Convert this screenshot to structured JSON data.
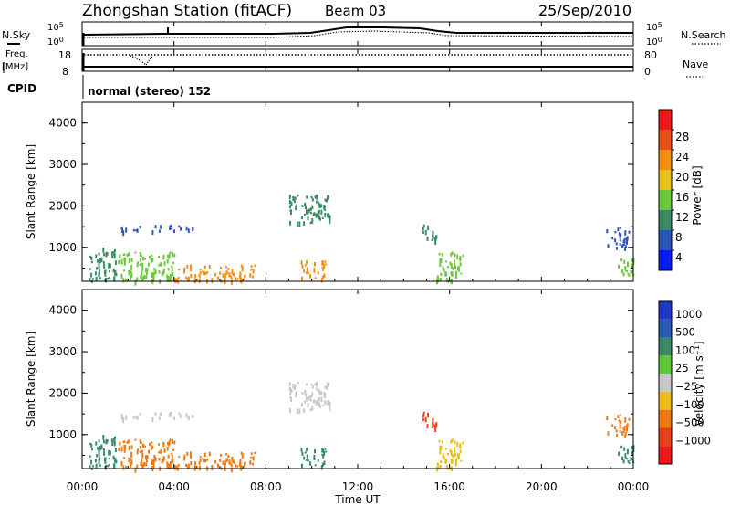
{
  "header": {
    "title": "Zhongshan Station (fitACF)",
    "beam": "Beam 03",
    "date": "25/Sep/2010"
  },
  "top_panels": {
    "nsky_label": "N.Sky",
    "nsky_ticks": [
      "10^5",
      "10^0"
    ],
    "nsearch_label": "N.Search",
    "nsearch_ticks": [
      "10^5",
      "10^0"
    ],
    "freq_label_1": "Freq.",
    "freq_label_2": "[MHz]",
    "freq_ticks": [
      "18",
      "8"
    ],
    "nave_label": "Nave",
    "nave_ticks": [
      "80",
      "0"
    ],
    "cpid_label": "CPID",
    "cpid_value": "normal (stereo) 152"
  },
  "x_axis": {
    "title": "Time UT",
    "ticks": [
      "00:00",
      "04:00",
      "08:00",
      "12:00",
      "16:00",
      "20:00",
      "00:00"
    ],
    "range_hours": [
      0,
      24
    ]
  },
  "y_axis": {
    "title": "Slant Range [km]",
    "ticks": [
      "1000",
      "2000",
      "3000",
      "4000"
    ],
    "range_km": [
      180,
      4500
    ]
  },
  "power_colorbar": {
    "title": "Power [dB]",
    "labels": [
      "4",
      "8",
      "12",
      "16",
      "20",
      "24",
      "28"
    ],
    "colors": [
      "#0a1df0",
      "#2a56b8",
      "#3a8a66",
      "#6ac83a",
      "#e8c21a",
      "#f48e12",
      "#e8501a",
      "#ee1a1a"
    ]
  },
  "velocity_colorbar": {
    "title": "Velocity [m s⁻¹]",
    "labels": [
      "1000",
      "500",
      "100",
      "25",
      "−25",
      "−100",
      "−500",
      "−1000"
    ],
    "colors": [
      "#2038c8",
      "#2a5ab4",
      "#3a8a6a",
      "#5ec83a",
      "#c8c8c4",
      "#eebc1a",
      "#f07a12",
      "#e8401a",
      "#ee1a1a"
    ]
  },
  "chart_data": [
    {
      "type": "heatmap",
      "name": "power",
      "xlabel": "Time UT",
      "ylabel": "Slant Range [km]",
      "xlim": [
        0,
        24
      ],
      "ylim": [
        180,
        4500
      ],
      "regions": [
        {
          "t": [
            0.3,
            1.5
          ],
          "r": [
            200,
            1000
          ],
          "color": "#3a8a66"
        },
        {
          "t": [
            1.5,
            4.0
          ],
          "r": [
            200,
            900
          ],
          "color": "#6ac83a"
        },
        {
          "t": [
            4.0,
            7.5
          ],
          "r": [
            200,
            600
          ],
          "color": "#f48e12"
        },
        {
          "t": [
            1.6,
            2.6
          ],
          "r": [
            1400,
            1550
          ],
          "color": "#2a56b8"
        },
        {
          "t": [
            3.0,
            4.8
          ],
          "r": [
            1400,
            1550
          ],
          "color": "#2a56b8"
        },
        {
          "t": [
            9.0,
            10.8
          ],
          "r": [
            1600,
            2300
          ],
          "color": "#3a8a66"
        },
        {
          "t": [
            9.5,
            10.6
          ],
          "r": [
            250,
            700
          ],
          "color": "#f48e12"
        },
        {
          "t": [
            14.8,
            15.4
          ],
          "r": [
            1100,
            1600
          ],
          "color": "#3a8a66"
        },
        {
          "t": [
            15.4,
            16.6
          ],
          "r": [
            200,
            900
          ],
          "color": "#6ac83a"
        },
        {
          "t": [
            22.8,
            23.8
          ],
          "r": [
            1000,
            1500
          ],
          "color": "#2a56b8"
        },
        {
          "t": [
            23.3,
            24.0
          ],
          "r": [
            300,
            800
          ],
          "color": "#6ac83a"
        }
      ]
    },
    {
      "type": "heatmap",
      "name": "velocity",
      "xlabel": "Time UT",
      "ylabel": "Slant Range [km]",
      "xlim": [
        0,
        24
      ],
      "ylim": [
        180,
        4500
      ],
      "regions": [
        {
          "t": [
            0.3,
            1.5
          ],
          "r": [
            200,
            1000
          ],
          "color": "#3a8a6a"
        },
        {
          "t": [
            1.5,
            4.0
          ],
          "r": [
            200,
            900
          ],
          "color": "#f07a12"
        },
        {
          "t": [
            4.0,
            7.5
          ],
          "r": [
            200,
            600
          ],
          "color": "#f07a12"
        },
        {
          "t": [
            1.6,
            2.6
          ],
          "r": [
            1400,
            1550
          ],
          "color": "#c8c8c4"
        },
        {
          "t": [
            3.0,
            4.8
          ],
          "r": [
            1400,
            1550
          ],
          "color": "#c8c8c4"
        },
        {
          "t": [
            9.0,
            10.8
          ],
          "r": [
            1600,
            2300
          ],
          "color": "#c8c8c4"
        },
        {
          "t": [
            9.5,
            10.6
          ],
          "r": [
            250,
            700
          ],
          "color": "#3a8a6a"
        },
        {
          "t": [
            14.8,
            15.4
          ],
          "r": [
            1100,
            1600
          ],
          "color": "#e8401a"
        },
        {
          "t": [
            15.4,
            16.6
          ],
          "r": [
            200,
            900
          ],
          "color": "#eebc1a"
        },
        {
          "t": [
            22.8,
            23.8
          ],
          "r": [
            1000,
            1500
          ],
          "color": "#f07a12"
        },
        {
          "t": [
            23.3,
            24.0
          ],
          "r": [
            300,
            800
          ],
          "color": "#3a8a6a"
        }
      ]
    }
  ]
}
